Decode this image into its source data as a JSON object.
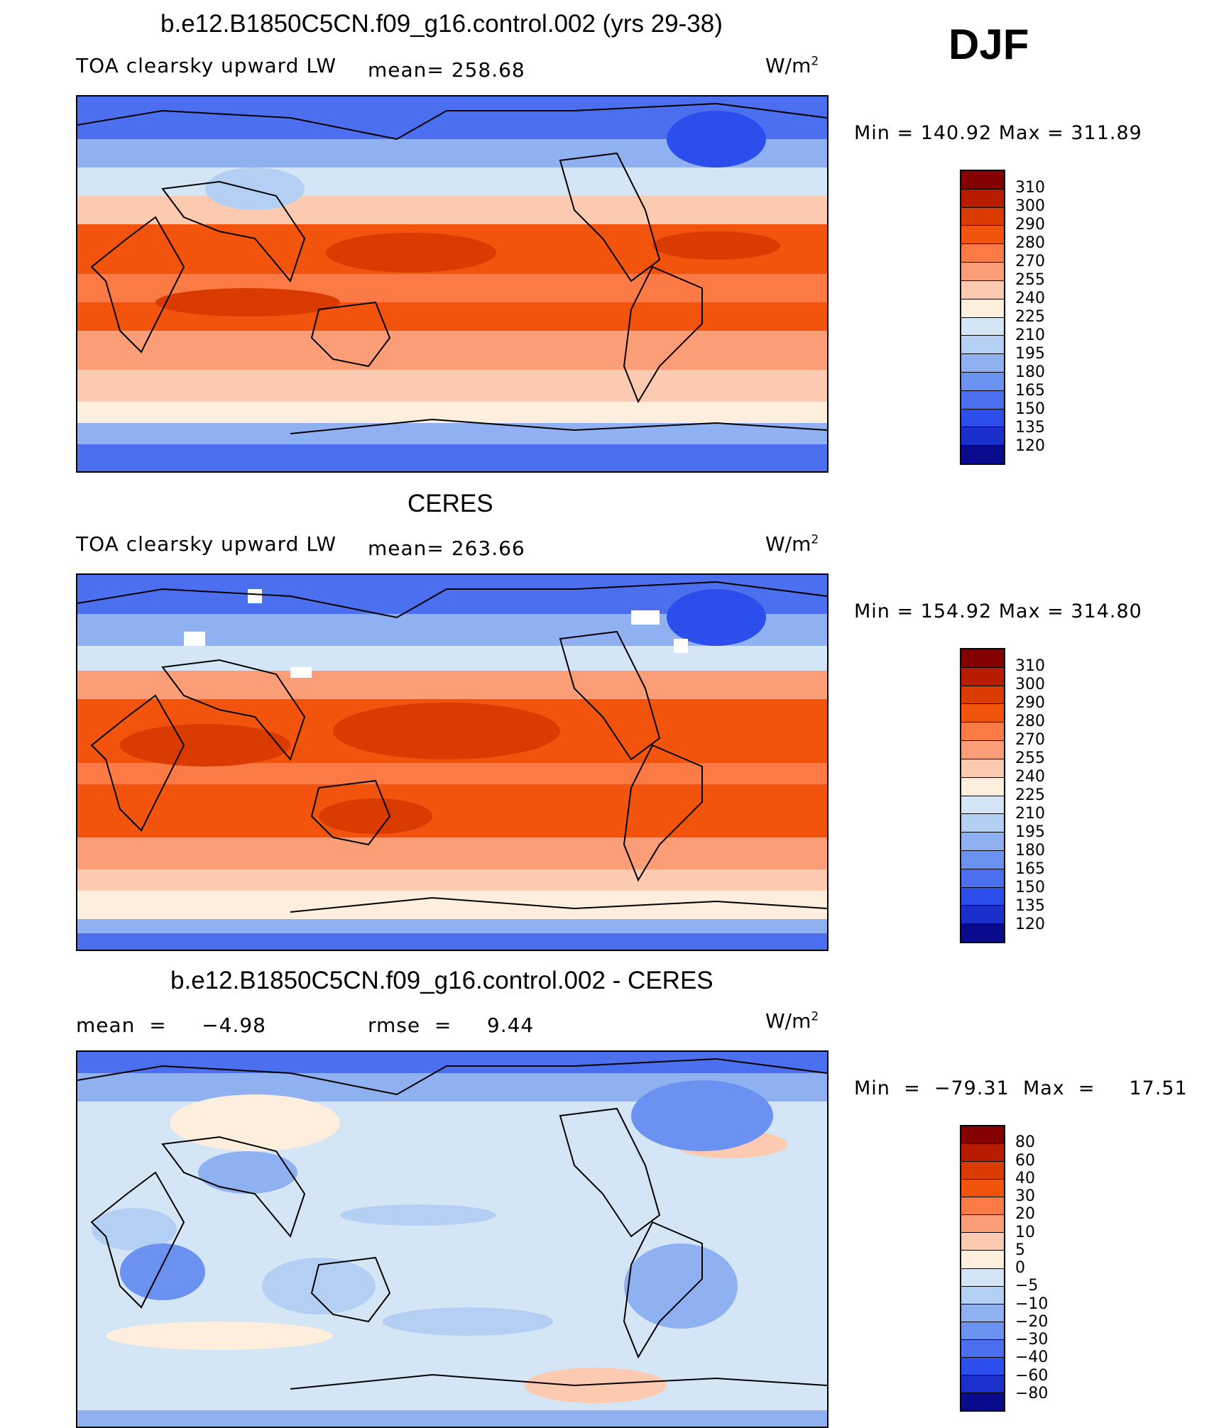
{
  "season": "DJF",
  "units_base": "W/m",
  "units_exp": "2",
  "panels": [
    {
      "title": "b.e12.B1850C5CN.f09_g16.control.002 (yrs 29-38)",
      "variable": "TOA clearsky upward LW",
      "stat": "mean=  258.68",
      "minmax": "Min  =  140.92  Max  =  311.89",
      "colorbar": {
        "labels": [
          "310",
          "300",
          "290",
          "280",
          "270",
          "255",
          "240",
          "225",
          "210",
          "195",
          "180",
          "165",
          "150",
          "135",
          "120"
        ],
        "colors": [
          "#850000",
          "#b71c00",
          "#d93b00",
          "#f2540e",
          "#fb7a45",
          "#fb9e77",
          "#fccab0",
          "#fdeede",
          "#d4e6f5",
          "#b3cff3",
          "#8fb1f2",
          "#6c92f1",
          "#4b6fef",
          "#2c4eec",
          "#1a2fcc",
          "#0a0a8c"
        ]
      }
    },
    {
      "title": "CERES",
      "variable": "TOA clearsky upward LW",
      "stat": "mean=  263.66",
      "minmax": "Min  =  154.92  Max  =  314.80",
      "colorbar": {
        "labels": [
          "310",
          "300",
          "290",
          "280",
          "270",
          "255",
          "240",
          "225",
          "210",
          "195",
          "180",
          "165",
          "150",
          "135",
          "120"
        ],
        "colors": [
          "#850000",
          "#b71c00",
          "#d93b00",
          "#f2540e",
          "#fb7a45",
          "#fb9e77",
          "#fccab0",
          "#fdeede",
          "#d4e6f5",
          "#b3cff3",
          "#8fb1f2",
          "#6c92f1",
          "#4b6fef",
          "#2c4eec",
          "#1a2fcc",
          "#0a0a8c"
        ]
      }
    },
    {
      "title": "b.e12.B1850C5CN.f09_g16.control.002 - CERES",
      "stat_mean": "mean  =     −4.98",
      "stat_rmse": "rmse  =     9.44",
      "minmax": "Min  =  −79.31  Max  =     17.51",
      "colorbar": {
        "labels": [
          "80",
          "60",
          "40",
          "30",
          "20",
          "10",
          "5",
          "0",
          "−5",
          "−10",
          "−20",
          "−30",
          "−40",
          "−60",
          "−80"
        ],
        "colors": [
          "#850000",
          "#b71c00",
          "#d93b00",
          "#f2540e",
          "#fb7a45",
          "#fb9e77",
          "#fccab0",
          "#fdeede",
          "#d4e6f5",
          "#b3cff3",
          "#8fb1f2",
          "#6c92f1",
          "#4b6fef",
          "#2c4eec",
          "#1a2fcc",
          "#0a0a8c"
        ]
      }
    }
  ]
}
